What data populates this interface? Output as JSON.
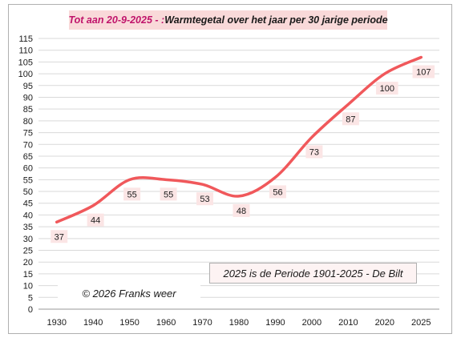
{
  "chart_data": {
    "type": "line",
    "title_part1": "Tot aan 20-9-2025 - : ",
    "title_part2": "Warmtegetal over het jaar per 30 jarige periode",
    "categories": [
      "1930",
      "1940",
      "1950",
      "1960",
      "1970",
      "1980",
      "1990",
      "2000",
      "2010",
      "2020",
      "2025"
    ],
    "series": [
      {
        "values": [
          37,
          44,
          55,
          55,
          53,
          48,
          56,
          73,
          87,
          100,
          107
        ]
      }
    ],
    "ylim": [
      0,
      115
    ],
    "ystep": 5,
    "grid": true,
    "line_color": "#f0585b",
    "label_bg": "#fbe5e5",
    "annotation": "2025 is de Periode 1901-2025 -  De Bilt",
    "copyright": "© 2026 Franks weer"
  }
}
